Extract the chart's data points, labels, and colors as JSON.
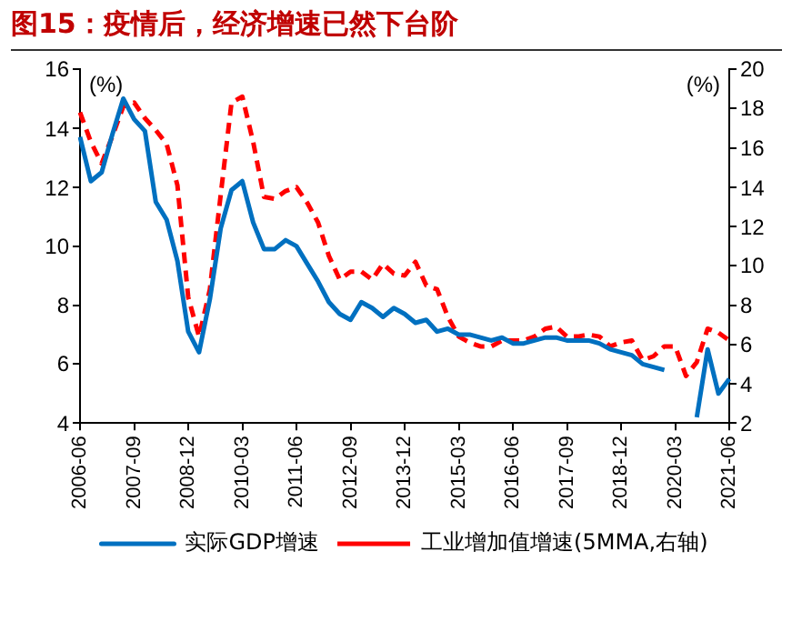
{
  "chart_data": {
    "type": "line",
    "title": "图15：疫情后，经济增速已然下台阶",
    "categories": [
      "2006-06",
      null,
      null,
      null,
      null,
      "2007-09",
      null,
      null,
      null,
      null,
      "2008-12",
      null,
      null,
      null,
      null,
      "2010-03",
      null,
      null,
      null,
      null,
      "2011-06",
      null,
      null,
      null,
      null,
      "2012-09",
      null,
      null,
      null,
      null,
      "2013-12",
      null,
      null,
      null,
      null,
      "2015-03",
      null,
      null,
      null,
      null,
      "2016-06",
      null,
      null,
      null,
      null,
      "2017-09",
      null,
      null,
      null,
      null,
      "2018-12",
      null,
      null,
      null,
      null,
      "2020-03",
      null,
      null,
      null,
      null,
      "2021-06"
    ],
    "series": [
      {
        "name": "实际GDP增速",
        "color": "#0070c0",
        "line_style": "solid",
        "values": [
          13.7,
          12.2,
          12.5,
          13.8,
          15.0,
          14.3,
          13.9,
          11.5,
          10.9,
          9.5,
          7.1,
          6.4,
          8.2,
          10.6,
          11.9,
          12.2,
          10.8,
          9.9,
          9.9,
          10.2,
          10.0,
          9.4,
          8.8,
          8.1,
          7.7,
          7.5,
          8.1,
          7.9,
          7.6,
          7.9,
          7.7,
          7.4,
          7.5,
          7.1,
          7.2,
          7.0,
          7.0,
          6.9,
          6.8,
          6.9,
          6.7,
          6.7,
          6.8,
          6.9,
          6.9,
          6.8,
          6.8,
          6.8,
          6.7,
          6.5,
          6.4,
          6.3,
          6.0,
          5.9,
          5.8,
          null,
          null,
          4.2,
          6.5,
          5.0,
          5.5
        ]
      },
      {
        "name": "工业增加值增速(5MMA,右轴)",
        "color": "#ff0000",
        "line_style": "dashed",
        "axis": "y2",
        "values": [
          17.8,
          16.3,
          15.2,
          16.6,
          18.1,
          18.3,
          17.5,
          16.9,
          16.2,
          14.1,
          8.4,
          6.4,
          8.8,
          13.6,
          18.3,
          18.6,
          16.3,
          13.5,
          13.4,
          13.8,
          14.0,
          13.2,
          12.2,
          10.5,
          9.3,
          9.7,
          9.7,
          9.3,
          10.1,
          9.6,
          9.5,
          10.2,
          9.0,
          8.8,
          7.4,
          6.4,
          6.1,
          5.9,
          5.9,
          6.2,
          6.2,
          6.2,
          6.4,
          6.8,
          6.9,
          6.4,
          6.4,
          6.5,
          6.4,
          5.9,
          6.1,
          6.2,
          5.2,
          5.4,
          5.9,
          5.9,
          4.4,
          5.1,
          6.8,
          6.6,
          6.2
        ]
      }
    ],
    "ylabel": "(%)",
    "y2label": "(%)",
    "ylim": [
      4,
      16
    ],
    "yticks": [
      4,
      6,
      8,
      10,
      12,
      14,
      16
    ],
    "y2lim": [
      2,
      20
    ],
    "y2ticks": [
      2,
      4,
      6,
      8,
      10,
      12,
      14,
      16,
      18,
      20
    ],
    "grid": false,
    "legend": "bottom",
    "marker": "none"
  }
}
